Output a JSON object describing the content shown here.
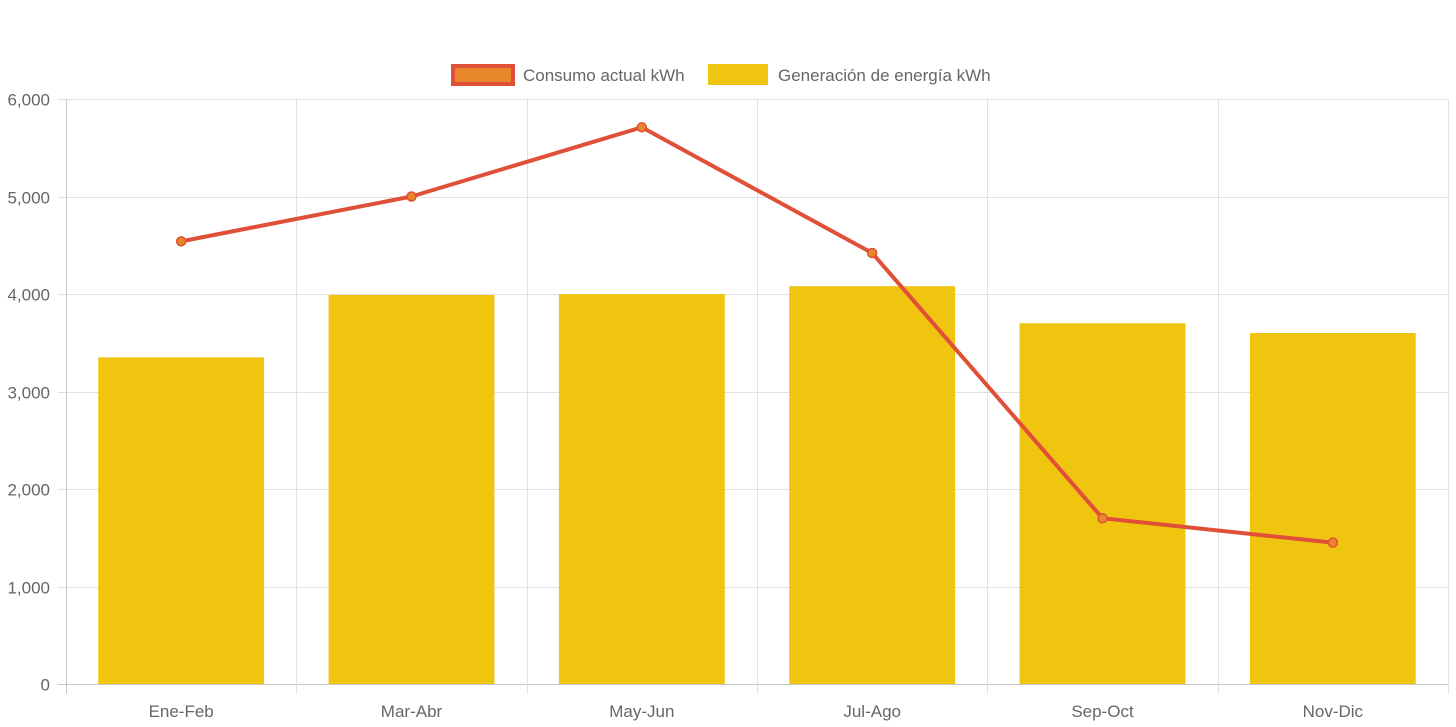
{
  "chart_data": {
    "type": "bar",
    "categories": [
      "Ene-Feb",
      "Mar-Abr",
      "May-Jun",
      "Jul-Ago",
      "Sep-Oct",
      "Nov-Dic"
    ],
    "ylim": [
      0,
      6000
    ],
    "y_ticks": [
      0,
      1000,
      2000,
      3000,
      4000,
      5000,
      6000
    ],
    "y_tick_labels": [
      "0",
      "1,000",
      "2,000",
      "3,000",
      "4,000",
      "5,000",
      "6,000"
    ],
    "grid": true,
    "legend_position": "top-center",
    "series": [
      {
        "name": "Consumo actual kWh",
        "type": "line",
        "color": "#e05038",
        "point_fill": "#e8862a",
        "values": [
          4540,
          5000,
          5710,
          4420,
          1700,
          1450
        ]
      },
      {
        "name": "Generación de energía kWh",
        "type": "bar",
        "color": "#f0c510",
        "values": [
          3350,
          3990,
          4000,
          4080,
          3700,
          3600
        ]
      }
    ]
  }
}
